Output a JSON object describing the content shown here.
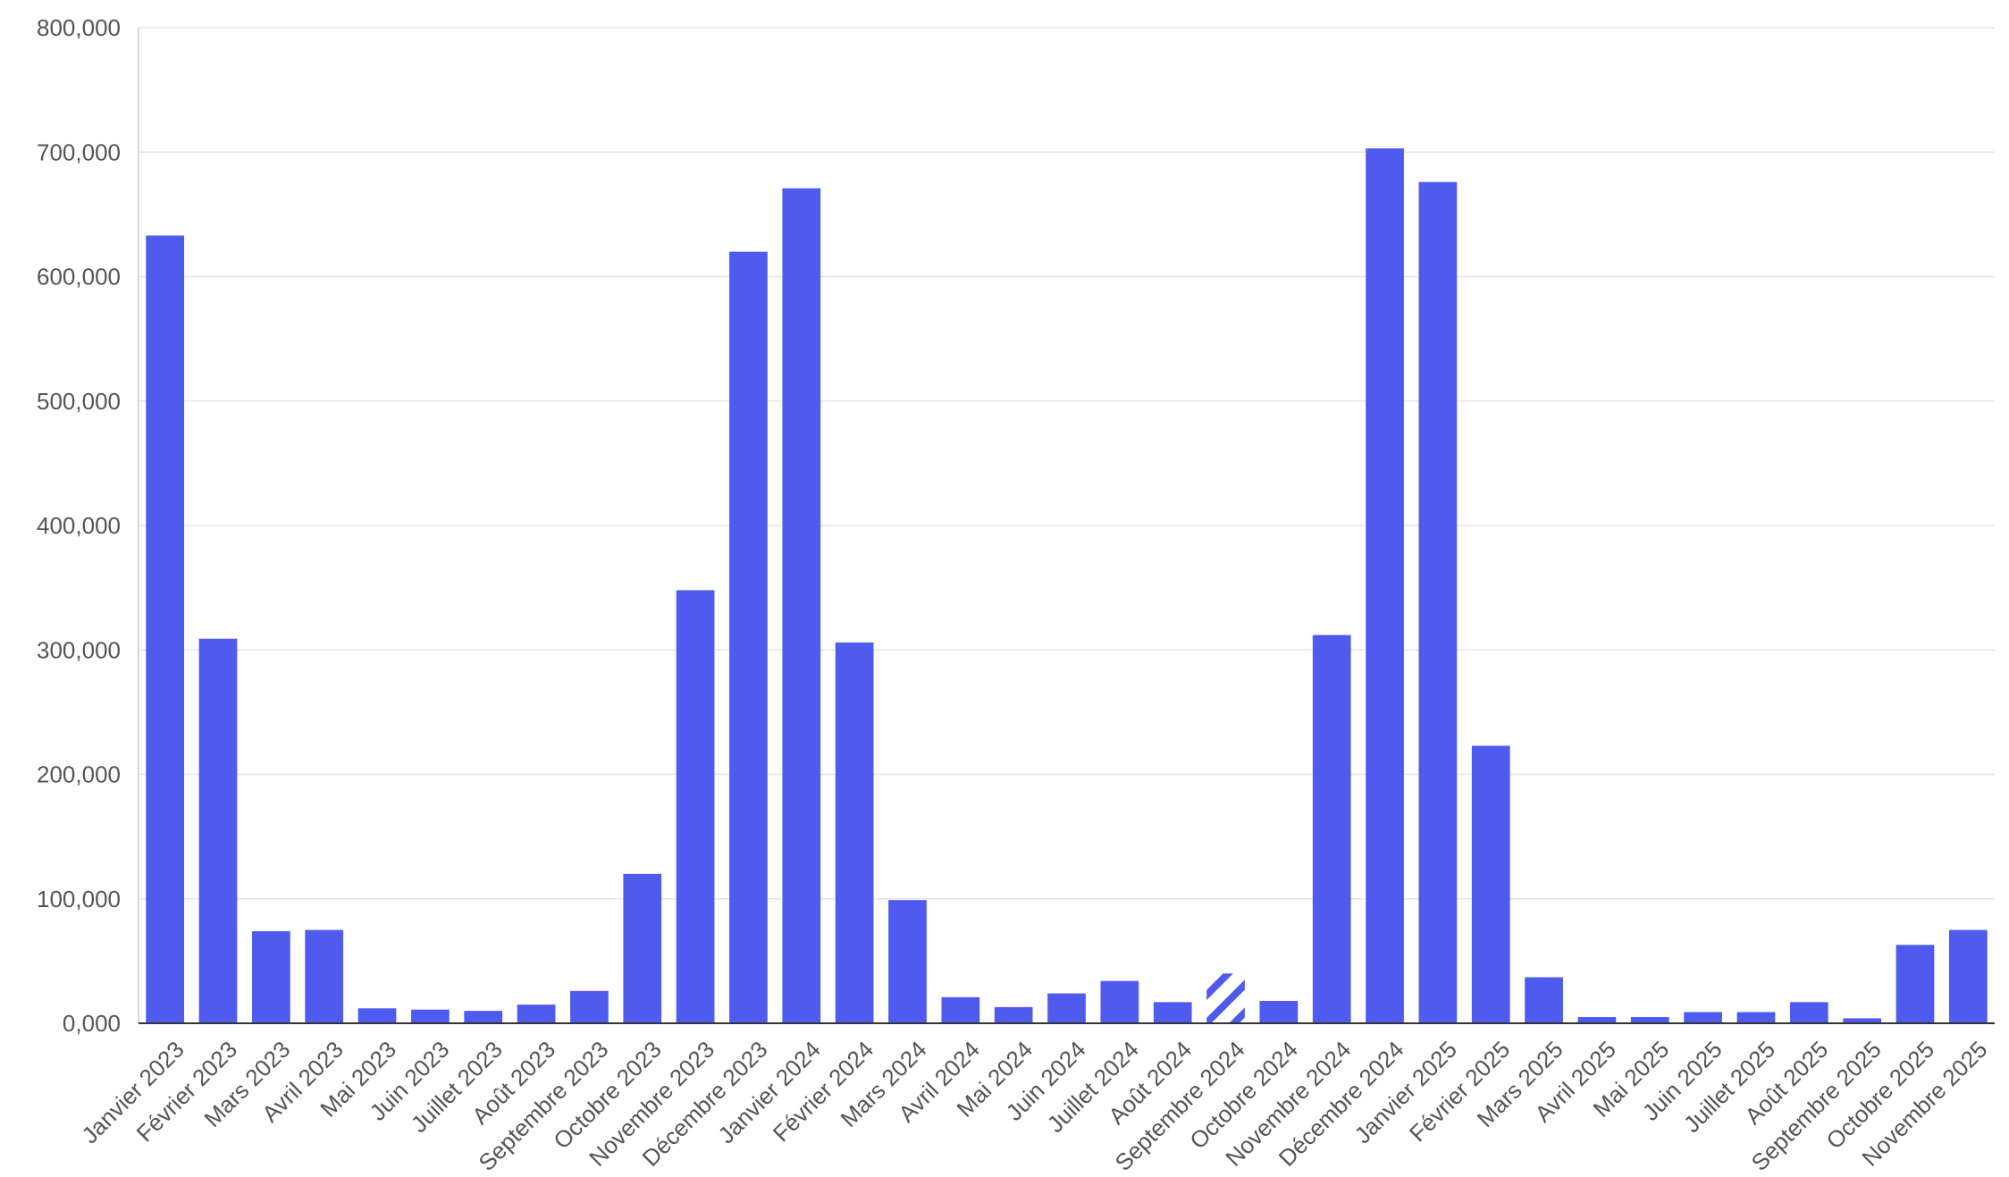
{
  "chart_data": {
    "type": "bar",
    "title": "",
    "xlabel": "",
    "ylabel": "",
    "ylim": [
      0,
      800000
    ],
    "yticks": [
      "0,000",
      "100,000",
      "200,000",
      "300,000",
      "400,000",
      "500,000",
      "600,000",
      "700,000",
      "800,000"
    ],
    "grid": true,
    "legend": "none",
    "bar_color": "#4f5bef",
    "categories": [
      "Janvier 2023",
      "Février 2023",
      "Mars 2023",
      "Avril 2023",
      "Mai 2023",
      "Juin 2023",
      "Juillet 2023",
      "Août 2023",
      "Septembre 2023",
      "Octobre 2023",
      "Novembre 2023",
      "Décembre 2023",
      "Janvier 2024",
      "Février 2024",
      "Mars 2024",
      "Avril 2024",
      "Mai 2024",
      "Juin 2024",
      "Juillet 2024",
      "Août 2024",
      "Septembre 2024",
      "Octobre 2024",
      "Novembre 2024",
      "Décembre 2024",
      "Janvier 2025",
      "Février 2025",
      "Mars 2025",
      "Avril 2025",
      "Mai 2025",
      "Juin 2025",
      "Juillet 2025",
      "Août 2025",
      "Septembre 2025",
      "Octobre 2025",
      "Novembre 2025"
    ],
    "values": [
      633000,
      309000,
      74000,
      75000,
      12000,
      11000,
      10000,
      15000,
      26000,
      120000,
      348000,
      620000,
      671000,
      306000,
      99000,
      21000,
      13000,
      24000,
      34000,
      17000,
      40000,
      18000,
      312000,
      703000,
      676000,
      223000,
      37000,
      5000,
      5000,
      9000,
      9000,
      17000,
      4000,
      63000,
      75000
    ],
    "hatched_categories": [
      "Septembre 2024"
    ]
  }
}
